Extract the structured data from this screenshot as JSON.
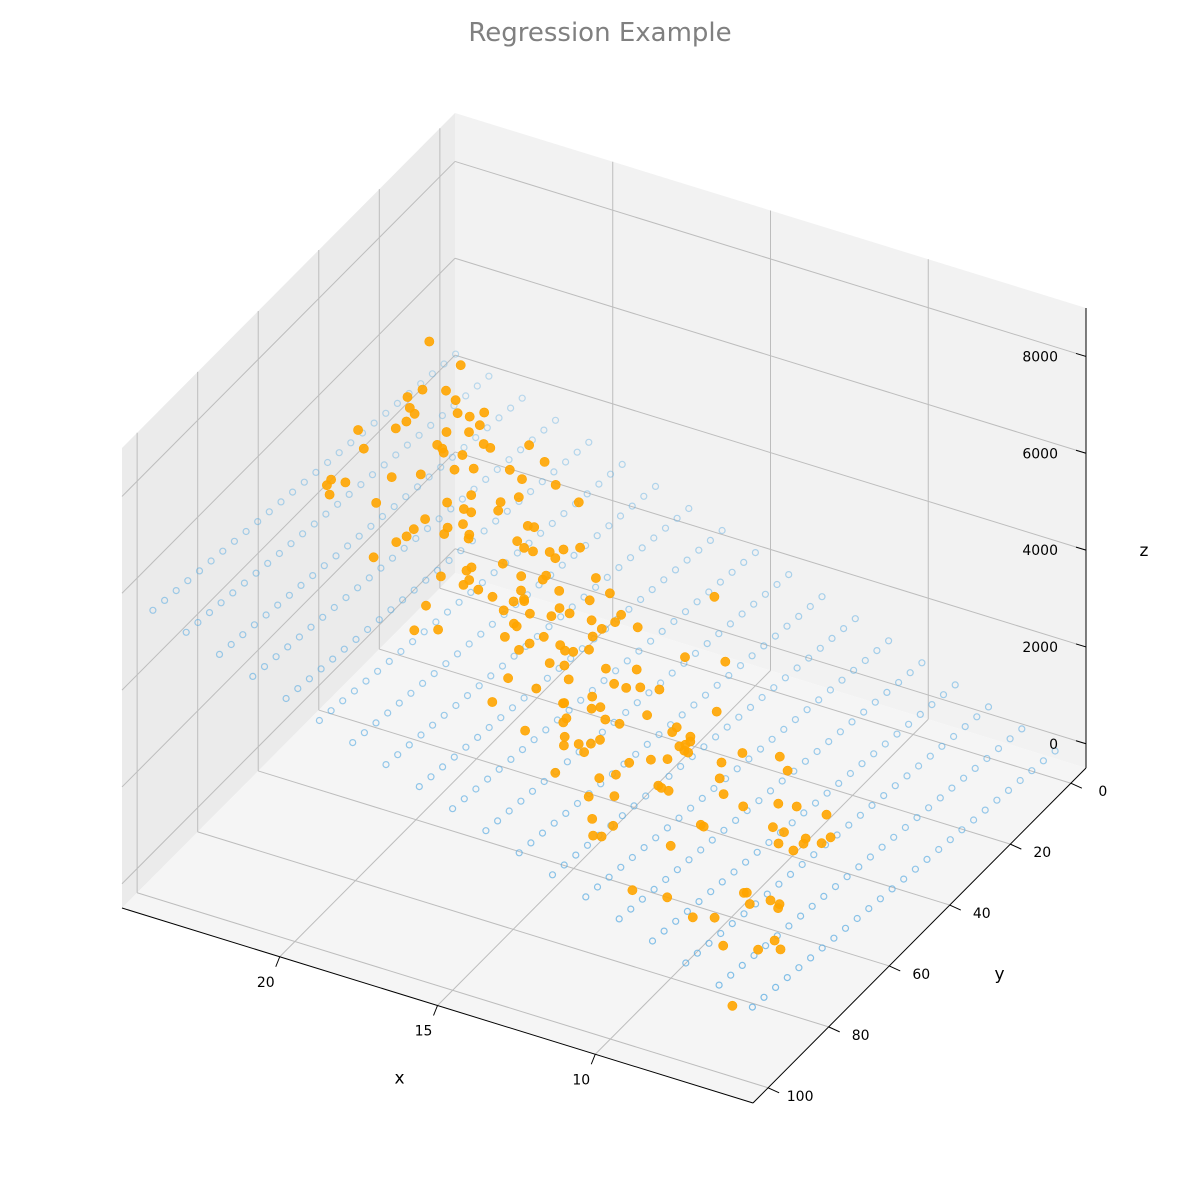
{
  "chart_data": {
    "type": "scatter",
    "title": "Regression Example",
    "xlabel": "x",
    "ylabel": "y",
    "zlabel": "z",
    "x_ticks": [
      "10",
      "15",
      "20"
    ],
    "y_ticks": [
      "0",
      "20",
      "40",
      "60",
      "80",
      "100"
    ],
    "z_ticks": [
      "0",
      "2000",
      "4000",
      "6000",
      "8000"
    ],
    "xlim": [
      5,
      25
    ],
    "ylim": [
      -5,
      105
    ],
    "zlim": [
      -500,
      9000
    ],
    "grid": true,
    "plane": {
      "name": "",
      "color": "#5dade2",
      "x_range": [
        5.5,
        24.5
      ],
      "y_range": [
        0,
        100
      ],
      "x_steps": 18,
      "y_steps": 26,
      "z_intercept": -1200,
      "z_per_x": 230,
      "z_per_y": 10
    },
    "points": {
      "name": "",
      "color": "#ffa500",
      "x_range": [
        7,
        24
      ],
      "y_range": [
        5,
        95
      ],
      "count": 200,
      "noise": 700
    }
  }
}
